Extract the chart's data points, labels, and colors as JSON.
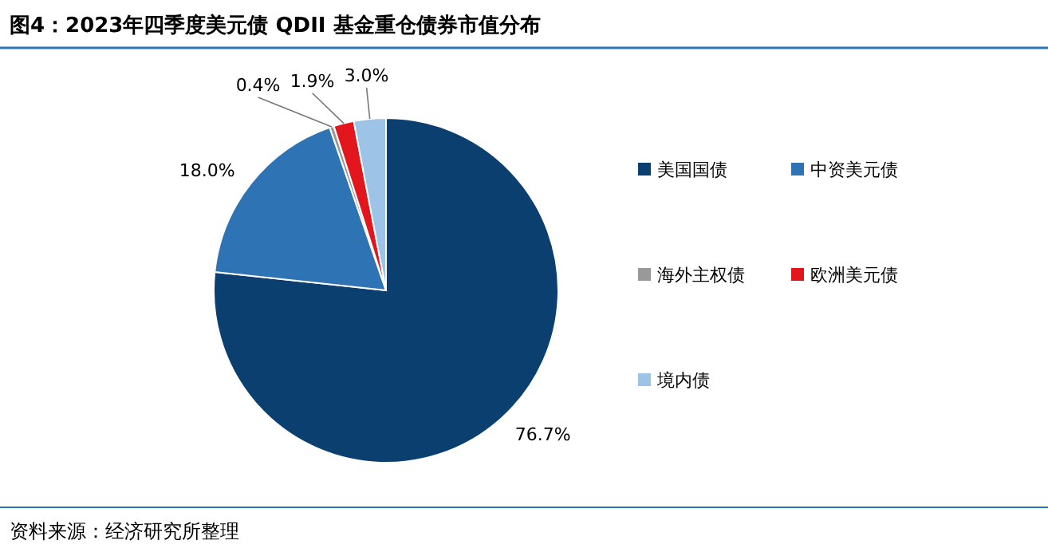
{
  "chart_data": {
    "type": "pie",
    "title": "图4：2023年四季度美元债 QDII 基金重仓债券市值分布",
    "categories": [
      "美国国债",
      "中资美元债",
      "海外主权债",
      "欧洲美元债",
      "境内债"
    ],
    "values": [
      76.7,
      18.0,
      0.4,
      1.9,
      3.0
    ],
    "value_labels": [
      "76.7%",
      "18.0%",
      "0.4%",
      "1.9%",
      "3.0%"
    ],
    "colors": [
      "#0b3f6f",
      "#2e74b5",
      "#999999",
      "#e3161d",
      "#9dc3e6"
    ],
    "legend": "right",
    "annotations": [
      "资料来源：经济研究所整理"
    ]
  }
}
